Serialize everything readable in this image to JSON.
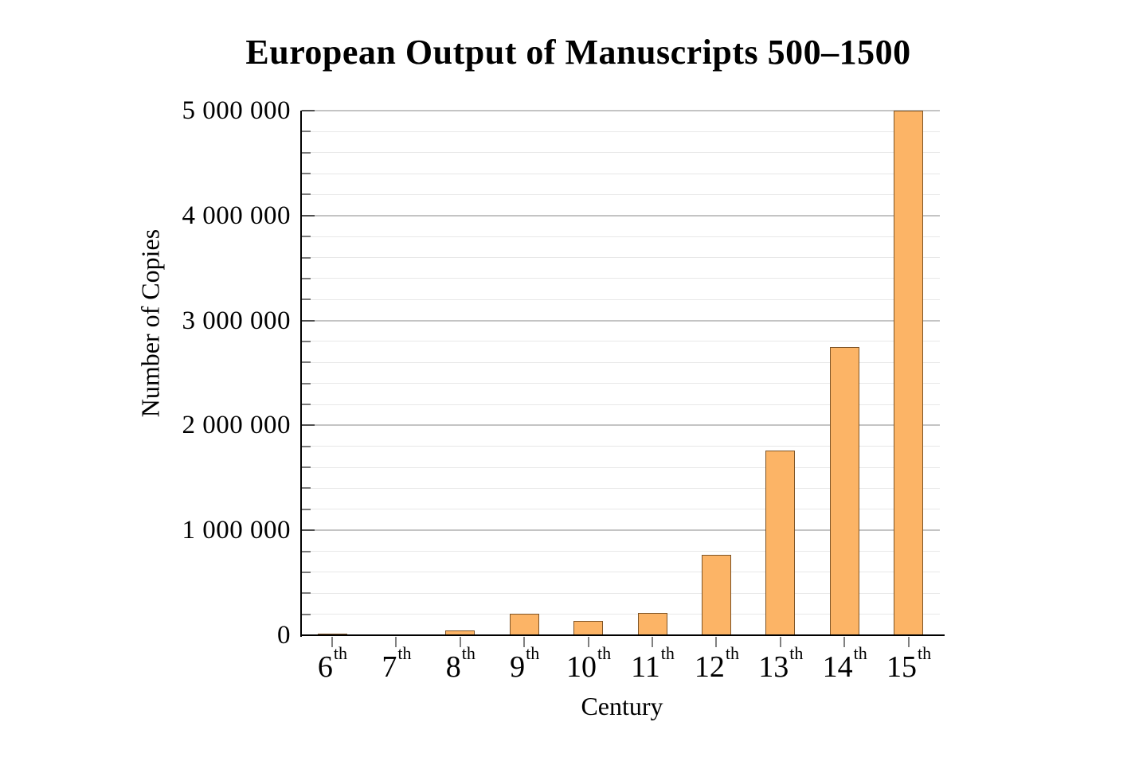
{
  "chart_data": {
    "type": "bar",
    "title": "European Output of Manuscripts 500–1500",
    "xlabel": "Century",
    "ylabel": "Number of Copies",
    "categories": [
      "6th",
      "7th",
      "8th",
      "9th",
      "10th",
      "11th",
      "12th",
      "13th",
      "14th",
      "15th"
    ],
    "category_base": [
      "6",
      "7",
      "8",
      "9",
      "10",
      "11",
      "12",
      "13",
      "14",
      "15"
    ],
    "category_suffix": "th",
    "values": [
      13418,
      10639,
      43702,
      201742,
      136413,
      212030,
      768721,
      1761951,
      2746951,
      4999161
    ],
    "ylim": [
      0,
      5000000
    ],
    "ytick_step": 1000000,
    "minor_tick_step": 200000,
    "ytick_labels": [
      "0",
      "1 000 000",
      "2 000 000",
      "3 000 000",
      "4 000 000",
      "5 000 000"
    ],
    "grid": "horizontal-minor-and-major",
    "legend": "none",
    "colors": {
      "background": "#ffffff",
      "bar_fill": "#FCB466",
      "bar_border": "#7E5426",
      "minor_grid": "#E8E8E8",
      "major_grid": "#C4C4C4",
      "axis": "#000000",
      "major_tick": "#4F4F4F",
      "minor_tick": "#7A7A7A",
      "x_tick": "#808080",
      "text": "#000000"
    }
  }
}
